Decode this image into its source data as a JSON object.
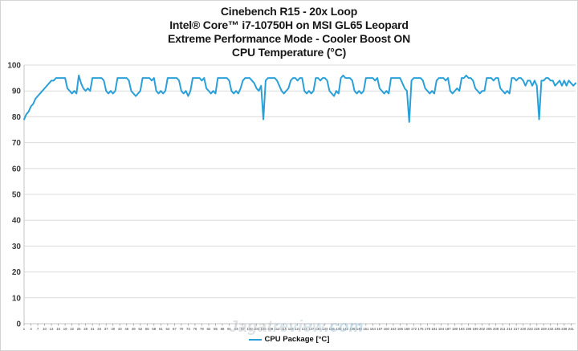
{
  "title": {
    "line1": "Cinebench R15 - 20x Loop",
    "line2": "Intel® Core™ i7-10750H on MSI GL65 Leopard",
    "line3": "Extreme Performance Mode - Cooler Boost ON",
    "line4": "CPU Temperature (°C)"
  },
  "legend": {
    "label": "CPU Package [°C]"
  },
  "watermark": {
    "part1": "Jagat",
    "part2": "review",
    "part3": ".com"
  },
  "colors": {
    "line": "#2BA0D8",
    "grid": "#DCDCDC",
    "axis": "#C6C6C6",
    "tick_text": "#3A3A3A",
    "title_text": "#171717"
  },
  "chart_data": {
    "type": "line",
    "title": "Cinebench R15 - 20x Loop — Intel® Core™ i7-10750H on MSI GL65 Leopard — Extreme Performance Mode - Cooler Boost ON — CPU Temperature (°C)",
    "xlabel": "",
    "ylabel": "",
    "ylim": [
      0,
      100
    ],
    "grid": true,
    "legend_position": "bottom",
    "y_ticks": [
      0,
      10,
      20,
      30,
      40,
      50,
      60,
      70,
      80,
      90,
      100
    ],
    "x_ticks": [
      1,
      4,
      7,
      10,
      13,
      16,
      19,
      22,
      25,
      28,
      31,
      34,
      37,
      40,
      43,
      46,
      49,
      52,
      55,
      58,
      61,
      64,
      67,
      70,
      73,
      76,
      79,
      82,
      85,
      88,
      91,
      94,
      97,
      100,
      103,
      106,
      109,
      112,
      115,
      118,
      121,
      124,
      127,
      130,
      133,
      136,
      139,
      142,
      145,
      148,
      151,
      154,
      157,
      160,
      163,
      166,
      169,
      172,
      175,
      178,
      181,
      184,
      187,
      190,
      193,
      196,
      199,
      202,
      205,
      208,
      211,
      214,
      217,
      220,
      223,
      226,
      229,
      232,
      235,
      238,
      241
    ],
    "series": [
      {
        "name": "CPU Package [°C]",
        "values": [
          79,
          81,
          82,
          84,
          85,
          87,
          88,
          89,
          90,
          91,
          92,
          93,
          94,
          94,
          95,
          95,
          95,
          95,
          95,
          91,
          90,
          89,
          90,
          89,
          96,
          93,
          91,
          90,
          91,
          90,
          95,
          95,
          95,
          95,
          95,
          94,
          90,
          89,
          90,
          89,
          90,
          95,
          95,
          95,
          95,
          95,
          94,
          90,
          89,
          88,
          89,
          90,
          95,
          95,
          95,
          95,
          94,
          95,
          90,
          89,
          90,
          89,
          90,
          95,
          95,
          95,
          95,
          95,
          94,
          90,
          89,
          90,
          88,
          90,
          95,
          95,
          95,
          95,
          94,
          95,
          91,
          90,
          89,
          90,
          89,
          95,
          95,
          95,
          95,
          95,
          94,
          90,
          89,
          90,
          89,
          91,
          94,
          95,
          95,
          95,
          94,
          93,
          91,
          90,
          92,
          79,
          94,
          95,
          95,
          95,
          95,
          94,
          92,
          90,
          89,
          90,
          91,
          94,
          95,
          95,
          94,
          95,
          95,
          90,
          89,
          90,
          89,
          90,
          95,
          95,
          94,
          95,
          95,
          94,
          90,
          89,
          88,
          90,
          89,
          95,
          96,
          95,
          95,
          95,
          94,
          90,
          89,
          90,
          89,
          90,
          95,
          95,
          95,
          95,
          94,
          95,
          91,
          90,
          89,
          90,
          89,
          95,
          95,
          95,
          95,
          95,
          93,
          91,
          90,
          78,
          94,
          95,
          95,
          95,
          95,
          94,
          91,
          90,
          89,
          90,
          89,
          94,
          95,
          95,
          95,
          94,
          95,
          90,
          89,
          90,
          91,
          90,
          95,
          95,
          96,
          95,
          95,
          94,
          91,
          90,
          89,
          90,
          90,
          95,
          95,
          95,
          94,
          95,
          95,
          91,
          90,
          89,
          90,
          89,
          95,
          95,
          94,
          95,
          95,
          94,
          92,
          94,
          94,
          92,
          94,
          92,
          79,
          94,
          94,
          95,
          95,
          94,
          94,
          92,
          93,
          94,
          92,
          94,
          92,
          94,
          93,
          92,
          93
        ]
      }
    ]
  }
}
